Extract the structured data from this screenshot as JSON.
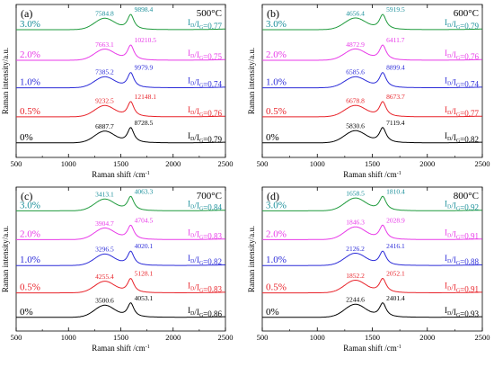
{
  "layout_colors": [
    "#000000",
    "#e8232a",
    "#2b2bd8",
    "#e83ae8",
    "#1e9a3c",
    "#1a8f9a"
  ],
  "x_ticks": [
    "500",
    "1000",
    "1500",
    "2000",
    "2500"
  ],
  "xlabel_text": "Raman shift /cm",
  "xlabel_sup": "-1",
  "ylabel_text": "Raman intensity/a.u.",
  "chart_data": [
    {
      "type": "line",
      "panel": "(a)",
      "temperature": "500°C",
      "xlabel": "Raman shift /cm-1",
      "ylabel": "Raman intensity/a.u.",
      "xlim": [
        500,
        2500
      ],
      "series": [
        {
          "label": "0%",
          "color": "#000000",
          "D_label": "6887.7",
          "G_label": "8728.5",
          "ratio_value": "0.79",
          "D_intensity": 6887.7,
          "G_intensity": 8728.5,
          "offset": 0
        },
        {
          "label": "0.5%",
          "color": "#e8232a",
          "D_label": "9232.5",
          "G_label": "12148.1",
          "ratio_value": "0.76",
          "D_intensity": 9232.5,
          "G_intensity": 12148.1,
          "offset": 1
        },
        {
          "label": "1.0%",
          "color": "#2b2bd8",
          "D_label": "7385.2",
          "G_label": "9979.9",
          "ratio_value": "0.74",
          "D_intensity": 7385.2,
          "G_intensity": 9979.9,
          "offset": 2
        },
        {
          "label": "2.0%",
          "color": "#e83ae8",
          "D_label": "7663.1",
          "G_label": "10210.5",
          "ratio_value": "0.75",
          "D_intensity": 7663.1,
          "G_intensity": 10210.5,
          "offset": 3
        },
        {
          "label": "3.0%",
          "color": "#1e9a3c",
          "label_color": "#1a8f9a",
          "D_label": "7584.8",
          "G_label": "9898.4",
          "ratio_value": "0.77",
          "D_intensity": 7584.8,
          "G_intensity": 9898.4,
          "offset": 4
        }
      ]
    },
    {
      "type": "line",
      "panel": "(b)",
      "temperature": "600°C",
      "xlabel": "Raman shift /cm-1",
      "ylabel": "Raman intensity/a.u.",
      "xlim": [
        500,
        2500
      ],
      "series": [
        {
          "label": "0%",
          "color": "#000000",
          "D_label": "5830.6",
          "G_label": "7119.4",
          "ratio_value": "0.82",
          "D_intensity": 5830.6,
          "G_intensity": 7119.4,
          "offset": 0
        },
        {
          "label": "0.5%",
          "color": "#e8232a",
          "D_label": "6678.8",
          "G_label": "8673.7",
          "ratio_value": "0.77",
          "D_intensity": 6678.8,
          "G_intensity": 8673.7,
          "offset": 1
        },
        {
          "label": "1.0%",
          "color": "#2b2bd8",
          "D_label": "6585.6",
          "G_label": "8899.4",
          "ratio_value": "0.74",
          "D_intensity": 6585.6,
          "G_intensity": 8899.4,
          "offset": 2
        },
        {
          "label": "2.0%",
          "color": "#e83ae8",
          "D_label": "4872.9",
          "G_label": "6411.7",
          "ratio_value": "0.76",
          "D_intensity": 4872.9,
          "G_intensity": 6411.7,
          "offset": 3
        },
        {
          "label": "3.0%",
          "color": "#1e9a3c",
          "label_color": "#1a8f9a",
          "D_label": "4656.4",
          "G_label": "5919.5",
          "ratio_value": "0.79",
          "D_intensity": 4656.4,
          "G_intensity": 5919.5,
          "offset": 4
        }
      ]
    },
    {
      "type": "line",
      "panel": "(c)",
      "temperature": "700°C",
      "xlabel": "Raman shift /cm-1",
      "ylabel": "Raman intensity/a.u.",
      "xlim": [
        500,
        2500
      ],
      "series": [
        {
          "label": "0%",
          "color": "#000000",
          "D_label": "3500.6",
          "G_label": "4053.1",
          "ratio_value": "0.86",
          "D_intensity": 3500.6,
          "G_intensity": 4053.1,
          "offset": 0
        },
        {
          "label": "0.5%",
          "color": "#e8232a",
          "D_label": "4255.4",
          "G_label": "5128.1",
          "ratio_value": "0.83",
          "D_intensity": 4255.4,
          "G_intensity": 5128.1,
          "offset": 1
        },
        {
          "label": "1.0%",
          "color": "#2b2bd8",
          "D_label": "3296.5",
          "G_label": "4020.1",
          "ratio_value": "0.82",
          "D_intensity": 3296.5,
          "G_intensity": 4020.1,
          "offset": 2
        },
        {
          "label": "2.0%",
          "color": "#e83ae8",
          "D_label": "3904.7",
          "G_label": "4704.5",
          "ratio_value": "0.83",
          "D_intensity": 3904.7,
          "G_intensity": 4704.5,
          "offset": 3
        },
        {
          "label": "3.0%",
          "color": "#1e9a3c",
          "label_color": "#1a8f9a",
          "D_label": "3413.1",
          "G_label": "4063.3",
          "ratio_value": "0.84",
          "D_intensity": 3413.1,
          "G_intensity": 4063.3,
          "offset": 4
        }
      ]
    },
    {
      "type": "line",
      "panel": "(d)",
      "temperature": "800°C",
      "xlabel": "Raman shift /cm-1",
      "ylabel": "Raman intensity/a.u.",
      "xlim": [
        500,
        2500
      ],
      "series": [
        {
          "label": "0%",
          "color": "#000000",
          "D_label": "2244.6",
          "G_label": "2401.4",
          "ratio_value": "0.93",
          "D_intensity": 2244.6,
          "G_intensity": 2401.4,
          "offset": 0
        },
        {
          "label": "0.5%",
          "color": "#e8232a",
          "D_label": "1852.2",
          "G_label": "2052.1",
          "ratio_value": "0.91",
          "D_intensity": 1852.2,
          "G_intensity": 2052.1,
          "offset": 1
        },
        {
          "label": "1.0%",
          "color": "#2b2bd8",
          "D_label": "2126.2",
          "G_label": "2416.1",
          "ratio_value": "0.88",
          "D_intensity": 2126.2,
          "G_intensity": 2416.1,
          "offset": 2
        },
        {
          "label": "2.0%",
          "color": "#e83ae8",
          "D_label": "1846.3",
          "G_label": "2028.9",
          "ratio_value": "0.91",
          "D_intensity": 1846.3,
          "G_intensity": 2028.9,
          "offset": 3
        },
        {
          "label": "3.0%",
          "color": "#1e9a3c",
          "label_color": "#1a8f9a",
          "D_label": "1658.5",
          "G_label": "1810.4",
          "ratio_value": "0.92",
          "D_intensity": 1658.5,
          "G_intensity": 1810.4,
          "offset": 4
        }
      ]
    }
  ]
}
